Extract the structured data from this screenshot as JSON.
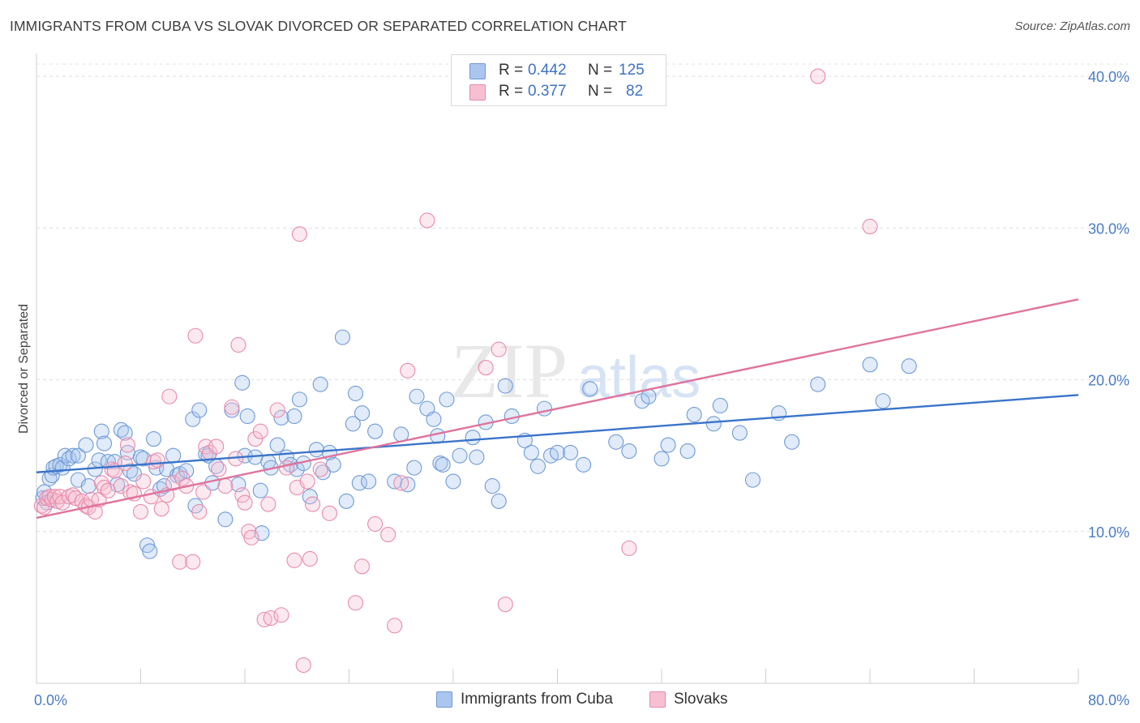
{
  "title": "IMMIGRANTS FROM CUBA VS SLOVAK DIVORCED OR SEPARATED CORRELATION CHART",
  "source": "Source: ZipAtlas.com",
  "watermark": {
    "text_zip": "ZIP",
    "text_atlas": "atlas"
  },
  "legend": {
    "r_label": "R =",
    "n_label": "N =",
    "rows": [
      {
        "r": "0.442",
        "n": "125",
        "color": "#aac6ef",
        "border": "#6f9ad8"
      },
      {
        "r": "0.377",
        "n": "82",
        "color": "#f7bfd2",
        "border": "#e88aab"
      }
    ]
  },
  "bottom_legend": [
    {
      "label": "Immigrants from Cuba",
      "color": "#aac6ef",
      "border": "#6f9ad8"
    },
    {
      "label": "Slovaks",
      "color": "#f7bfd2",
      "border": "#e88aab"
    }
  ],
  "chart_data": {
    "type": "scatter",
    "ylabel": "Divorced or Separated",
    "x_tick_labels": [
      "0.0%",
      "80.0%"
    ],
    "y_tick_labels": [
      "10.0%",
      "20.0%",
      "30.0%",
      "40.0%"
    ],
    "xlim": [
      0,
      80
    ],
    "ylim": [
      0,
      41.5
    ],
    "y_ticks": [
      10,
      20,
      30,
      40
    ],
    "grid": "horizontal dashed",
    "series": [
      {
        "name": "Immigrants from Cuba",
        "color": "#6f9ad8",
        "fill": "rgba(170,198,239,0.35)",
        "trend": {
          "x": [
            0,
            80
          ],
          "y": [
            13.9,
            19.0
          ],
          "color": "#3a74c9"
        },
        "points": [
          [
            0.5,
            12.2
          ],
          [
            0.6,
            12.6
          ],
          [
            0.8,
            11.9
          ],
          [
            1.0,
            13.5
          ],
          [
            1.2,
            13.7
          ],
          [
            1.3,
            14.2
          ],
          [
            1.5,
            14.3
          ],
          [
            1.8,
            14.4
          ],
          [
            2.0,
            14.2
          ],
          [
            2.2,
            15.0
          ],
          [
            2.5,
            14.8
          ],
          [
            2.8,
            15.0
          ],
          [
            3.2,
            15.0
          ],
          [
            3.2,
            13.4
          ],
          [
            3.8,
            15.7
          ],
          [
            4.0,
            13.0
          ],
          [
            4.5,
            14.1
          ],
          [
            4.8,
            14.7
          ],
          [
            5.0,
            16.6
          ],
          [
            5.2,
            15.8
          ],
          [
            5.5,
            14.6
          ],
          [
            6.0,
            14.6
          ],
          [
            6.2,
            13.1
          ],
          [
            6.5,
            16.7
          ],
          [
            6.8,
            16.5
          ],
          [
            7.0,
            15.2
          ],
          [
            7.2,
            14.0
          ],
          [
            7.5,
            13.8
          ],
          [
            8.0,
            14.9
          ],
          [
            8.2,
            14.8
          ],
          [
            8.5,
            9.1
          ],
          [
            8.7,
            8.7
          ],
          [
            9.0,
            16.1
          ],
          [
            9.2,
            14.2
          ],
          [
            9.5,
            12.8
          ],
          [
            9.8,
            13.0
          ],
          [
            10.0,
            14.1
          ],
          [
            10.5,
            15.0
          ],
          [
            10.8,
            13.7
          ],
          [
            11.0,
            13.8
          ],
          [
            11.5,
            14.0
          ],
          [
            12.0,
            17.4
          ],
          [
            12.2,
            11.7
          ],
          [
            12.5,
            18.0
          ],
          [
            13.0,
            15.1
          ],
          [
            13.2,
            15.0
          ],
          [
            13.5,
            13.2
          ],
          [
            13.8,
            14.3
          ],
          [
            14.5,
            10.8
          ],
          [
            15.0,
            18.0
          ],
          [
            15.5,
            13.1
          ],
          [
            15.8,
            19.8
          ],
          [
            16.0,
            15.0
          ],
          [
            16.2,
            17.6
          ],
          [
            16.8,
            14.9
          ],
          [
            17.2,
            12.7
          ],
          [
            17.3,
            9.9
          ],
          [
            17.8,
            14.6
          ],
          [
            18.0,
            14.2
          ],
          [
            18.5,
            15.7
          ],
          [
            18.8,
            17.5
          ],
          [
            19.2,
            14.9
          ],
          [
            19.5,
            14.4
          ],
          [
            19.8,
            17.6
          ],
          [
            20.0,
            14.1
          ],
          [
            20.2,
            18.7
          ],
          [
            20.5,
            14.5
          ],
          [
            21.0,
            12.3
          ],
          [
            21.5,
            15.4
          ],
          [
            21.8,
            19.7
          ],
          [
            22.0,
            13.9
          ],
          [
            22.5,
            15.2
          ],
          [
            22.8,
            14.4
          ],
          [
            23.5,
            22.8
          ],
          [
            23.8,
            12.0
          ],
          [
            24.3,
            17.1
          ],
          [
            24.5,
            19.1
          ],
          [
            24.8,
            13.2
          ],
          [
            25.0,
            17.8
          ],
          [
            25.5,
            13.3
          ],
          [
            26.0,
            16.6
          ],
          [
            27.5,
            13.3
          ],
          [
            28.0,
            16.4
          ],
          [
            28.5,
            13.1
          ],
          [
            29.0,
            14.2
          ],
          [
            29.2,
            18.9
          ],
          [
            30.0,
            18.1
          ],
          [
            30.5,
            17.4
          ],
          [
            30.8,
            16.3
          ],
          [
            31.0,
            14.5
          ],
          [
            31.2,
            14.4
          ],
          [
            31.5,
            18.7
          ],
          [
            32.0,
            13.3
          ],
          [
            32.5,
            15.0
          ],
          [
            33.5,
            16.2
          ],
          [
            33.8,
            14.9
          ],
          [
            34.5,
            17.2
          ],
          [
            35.0,
            13.0
          ],
          [
            35.5,
            12.0
          ],
          [
            36.0,
            19.6
          ],
          [
            36.5,
            17.6
          ],
          [
            37.5,
            16.0
          ],
          [
            38.0,
            15.2
          ],
          [
            38.5,
            14.3
          ],
          [
            39.0,
            18.1
          ],
          [
            39.5,
            15.0
          ],
          [
            40.0,
            15.2
          ],
          [
            41.0,
            15.2
          ],
          [
            42.0,
            14.4
          ],
          [
            42.5,
            19.4
          ],
          [
            44.5,
            15.9
          ],
          [
            45.5,
            15.3
          ],
          [
            46.5,
            18.6
          ],
          [
            47.0,
            18.9
          ],
          [
            48.0,
            14.8
          ],
          [
            48.5,
            15.7
          ],
          [
            50.0,
            15.3
          ],
          [
            50.5,
            17.7
          ],
          [
            52.0,
            17.1
          ],
          [
            52.5,
            18.3
          ],
          [
            54.0,
            16.5
          ],
          [
            55.0,
            13.4
          ],
          [
            57.0,
            17.8
          ],
          [
            58.0,
            15.9
          ],
          [
            60.0,
            19.7
          ],
          [
            64.0,
            21.0
          ],
          [
            65.0,
            18.6
          ],
          [
            67.0,
            20.9
          ]
        ]
      },
      {
        "name": "Slovaks",
        "color": "#e88aab",
        "fill": "rgba(247,191,210,0.35)",
        "trend": {
          "x": [
            0,
            80
          ],
          "y": [
            10.9,
            25.3
          ],
          "color": "#e0739c"
        },
        "points": [
          [
            0.4,
            11.7
          ],
          [
            0.6,
            11.6
          ],
          [
            0.8,
            12.2
          ],
          [
            1.0,
            12.3
          ],
          [
            1.2,
            12.1
          ],
          [
            1.4,
            12.3
          ],
          [
            1.6,
            12.0
          ],
          [
            1.8,
            12.3
          ],
          [
            2.0,
            11.9
          ],
          [
            2.5,
            12.3
          ],
          [
            2.8,
            12.4
          ],
          [
            3.0,
            12.2
          ],
          [
            3.5,
            12.0
          ],
          [
            3.8,
            11.7
          ],
          [
            4.0,
            11.6
          ],
          [
            4.2,
            12.1
          ],
          [
            4.5,
            11.3
          ],
          [
            4.8,
            12.1
          ],
          [
            5.0,
            13.2
          ],
          [
            5.2,
            12.9
          ],
          [
            5.5,
            12.7
          ],
          [
            5.8,
            14.1
          ],
          [
            6.0,
            14.0
          ],
          [
            6.5,
            13.0
          ],
          [
            6.8,
            14.5
          ],
          [
            7.0,
            15.7
          ],
          [
            7.2,
            12.6
          ],
          [
            7.5,
            12.5
          ],
          [
            8.0,
            11.3
          ],
          [
            8.2,
            13.3
          ],
          [
            8.8,
            12.3
          ],
          [
            9.0,
            14.6
          ],
          [
            9.3,
            14.7
          ],
          [
            9.6,
            11.5
          ],
          [
            10.0,
            12.4
          ],
          [
            10.2,
            18.9
          ],
          [
            10.5,
            13.2
          ],
          [
            11.0,
            8.0
          ],
          [
            11.2,
            13.5
          ],
          [
            11.5,
            13.0
          ],
          [
            12.0,
            8.0
          ],
          [
            12.2,
            22.9
          ],
          [
            12.5,
            11.3
          ],
          [
            12.8,
            12.6
          ],
          [
            13.0,
            15.6
          ],
          [
            13.3,
            15.2
          ],
          [
            13.8,
            15.6
          ],
          [
            14.0,
            14.1
          ],
          [
            14.5,
            13.0
          ],
          [
            15.0,
            18.2
          ],
          [
            15.3,
            14.8
          ],
          [
            15.5,
            22.3
          ],
          [
            15.8,
            12.4
          ],
          [
            16.0,
            11.9
          ],
          [
            16.3,
            10.0
          ],
          [
            16.5,
            9.6
          ],
          [
            16.8,
            16.1
          ],
          [
            17.2,
            16.6
          ],
          [
            17.5,
            4.2
          ],
          [
            17.8,
            11.8
          ],
          [
            18.0,
            4.3
          ],
          [
            18.5,
            18.0
          ],
          [
            18.8,
            4.5
          ],
          [
            19.2,
            14.2
          ],
          [
            19.8,
            8.1
          ],
          [
            20.0,
            12.9
          ],
          [
            20.2,
            29.6
          ],
          [
            20.5,
            1.2
          ],
          [
            20.8,
            13.3
          ],
          [
            21.0,
            8.2
          ],
          [
            21.2,
            11.8
          ],
          [
            21.8,
            14.1
          ],
          [
            22.5,
            11.2
          ],
          [
            24.5,
            5.3
          ],
          [
            25.0,
            7.7
          ],
          [
            26.0,
            10.5
          ],
          [
            27.0,
            9.8
          ],
          [
            27.5,
            3.8
          ],
          [
            28.0,
            13.2
          ],
          [
            28.5,
            20.6
          ],
          [
            30.0,
            30.5
          ],
          [
            34.5,
            20.8
          ],
          [
            35.5,
            22.0
          ],
          [
            36.0,
            5.2
          ],
          [
            45.5,
            8.9
          ],
          [
            60.0,
            40.0
          ],
          [
            64.0,
            30.1
          ]
        ]
      }
    ]
  }
}
